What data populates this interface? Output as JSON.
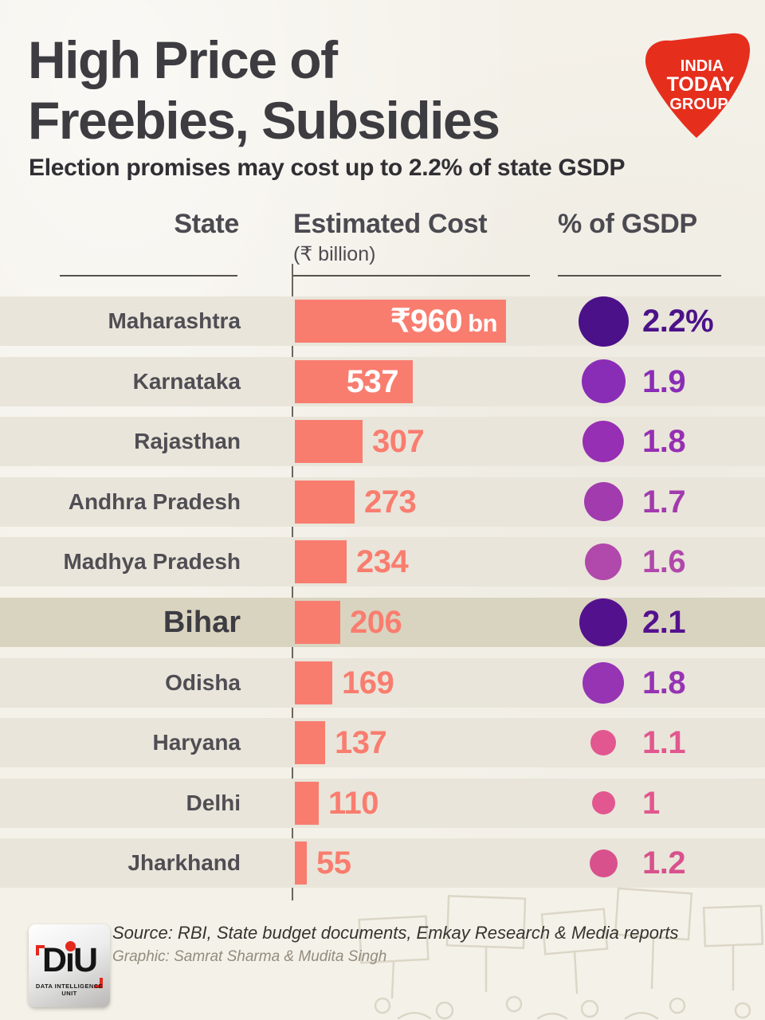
{
  "header": {
    "title_line1": "High Price of",
    "title_line2": "Freebies, Subsidies",
    "subtitle": "Election promises may cost up to 2.2% of state GSDP",
    "logo": {
      "line1": "INDIA",
      "line2": "TODAY",
      "line3": "GROUP",
      "color": "#e62e1d"
    }
  },
  "table": {
    "col_state": "State",
    "col_cost": "Estimated Cost",
    "col_cost_unit": "(₹ billion)",
    "col_gsdp": "% of GSDP",
    "rows": [
      {
        "state": "Maharashtra",
        "cost": 960,
        "cost_label": "₹960",
        "cost_suffix": "bn",
        "label_inside": true,
        "pct": 2.2,
        "pct_label": "2.2%",
        "circle_color": "#4b1189",
        "highlight": false
      },
      {
        "state": "Karnataka",
        "cost": 537,
        "cost_label": "537",
        "cost_suffix": "",
        "label_inside": true,
        "pct": 1.9,
        "pct_label": "1.9",
        "circle_color": "#8a2db6",
        "highlight": false
      },
      {
        "state": "Rajasthan",
        "cost": 307,
        "cost_label": "307",
        "cost_suffix": "",
        "label_inside": false,
        "pct": 1.8,
        "pct_label": "1.8",
        "circle_color": "#962fb3",
        "highlight": false
      },
      {
        "state": "Andhra Pradesh",
        "cost": 273,
        "cost_label": "273",
        "cost_suffix": "",
        "label_inside": false,
        "pct": 1.7,
        "pct_label": "1.7",
        "circle_color": "#a23bae",
        "highlight": false
      },
      {
        "state": "Madhya Pradesh",
        "cost": 234,
        "cost_label": "234",
        "cost_suffix": "",
        "label_inside": false,
        "pct": 1.6,
        "pct_label": "1.6",
        "circle_color": "#b148ab",
        "highlight": false
      },
      {
        "state": "Bihar",
        "cost": 206,
        "cost_label": "206",
        "cost_suffix": "",
        "label_inside": false,
        "pct": 2.1,
        "pct_label": "2.1",
        "circle_color": "#54118e",
        "highlight": true
      },
      {
        "state": "Odisha",
        "cost": 169,
        "cost_label": "169",
        "cost_suffix": "",
        "label_inside": false,
        "pct": 1.8,
        "pct_label": "1.8",
        "circle_color": "#9634b4",
        "highlight": false
      },
      {
        "state": "Haryana",
        "cost": 137,
        "cost_label": "137",
        "cost_suffix": "",
        "label_inside": false,
        "pct": 1.1,
        "pct_label": "1.1",
        "circle_color": "#e2578f",
        "highlight": false
      },
      {
        "state": "Delhi",
        "cost": 110,
        "cost_label": "110",
        "cost_suffix": "",
        "label_inside": false,
        "pct": 1.0,
        "pct_label": "1",
        "circle_color": "#e2578f",
        "highlight": false
      },
      {
        "state": "Jharkhand",
        "cost": 55,
        "cost_label": "55",
        "cost_suffix": "",
        "label_inside": false,
        "pct": 1.2,
        "pct_label": "1.2",
        "circle_color": "#d8518d",
        "highlight": false
      }
    ]
  },
  "footer": {
    "source": "Source: RBI, State budget documents, Emkay Research & Media reports",
    "credit": "Graphic: Samrat Sharma & Mudita Singh",
    "diu": {
      "label": "DiU",
      "tagline": "DATA INTELLIGENCE UNIT"
    }
  },
  "colors": {
    "background": "#f4f1e9",
    "row_band": "#e9e5da",
    "highlight_band": "#d9d4c0",
    "bar": "#f97d6f",
    "title_text": "#3d3c41",
    "logo_red": "#e62e1d"
  },
  "chart_data": {
    "type": "bar",
    "orientation": "horizontal",
    "title": "High Price of Freebies, Subsidies",
    "subtitle": "Election promises may cost up to 2.2% of state GSDP",
    "categories": [
      "Maharashtra",
      "Karnataka",
      "Rajasthan",
      "Andhra Pradesh",
      "Madhya Pradesh",
      "Bihar",
      "Odisha",
      "Haryana",
      "Delhi",
      "Jharkhand"
    ],
    "series": [
      {
        "name": "Estimated Cost (₹ billion)",
        "values": [
          960,
          537,
          307,
          273,
          234,
          206,
          169,
          137,
          110,
          55
        ]
      },
      {
        "name": "% of GSDP",
        "values": [
          2.2,
          1.9,
          1.8,
          1.7,
          1.6,
          2.1,
          1.8,
          1.1,
          1,
          1.2
        ]
      }
    ],
    "xlim": [
      0,
      960
    ],
    "grid": false,
    "legend_position": "none",
    "annotations": [
      "Bihar row highlighted with darker band",
      "% of GSDP encoded as bubble size and purple-to-pink color scale"
    ]
  }
}
